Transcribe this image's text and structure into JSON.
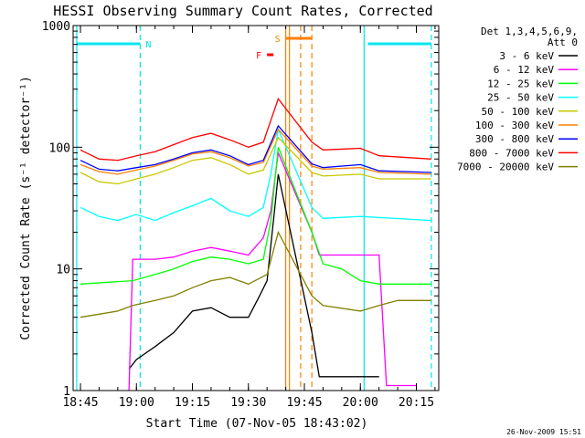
{
  "chart_data": {
    "type": "line",
    "title": "HESSI Observing Summary Count Rates, Corrected",
    "xlabel": "Start Time (07-Nov-05 18:43:02)",
    "ylabel": "Corrected Count Rate (s⁻¹ detector⁻¹)",
    "x_ticks": [
      "18:45",
      "19:00",
      "19:15",
      "19:30",
      "19:45",
      "20:00",
      "20:15"
    ],
    "y_ticks": [
      "1",
      "10",
      "100",
      "1000"
    ],
    "yscale": "log",
    "ylim": [
      1,
      1000
    ],
    "xlim": [
      "18:43:02",
      "20:21:00"
    ],
    "grid": false,
    "legend_position": "top-right",
    "legend_header": [
      "Det 1,3,4,5,6,9,",
      "Att 0"
    ],
    "flags": [
      {
        "label": "N",
        "color": "#00e5ee",
        "spans": [
          [
            "18:44",
            "19:01"
          ],
          [
            "20:02",
            "20:19"
          ]
        ]
      },
      {
        "label": "S",
        "color": "#ff7f00",
        "spans": [
          [
            "19:40",
            "19:47"
          ]
        ]
      },
      {
        "label": "F",
        "color": "#ff0000",
        "spans": [
          [
            "19:35",
            "19:37"
          ]
        ]
      }
    ],
    "vlines": [
      {
        "time": "19:01",
        "color": "#00e5ee",
        "style": "dashed"
      },
      {
        "time": "20:01",
        "color": "#00e5ee",
        "style": "solid"
      },
      {
        "time": "20:19",
        "color": "#00e5ee",
        "style": "dashed"
      },
      {
        "time": "18:44",
        "color": "#00e5ee",
        "style": "solid"
      },
      {
        "time": "19:40",
        "color": "#ff7f00",
        "style": "solid"
      },
      {
        "time": "19:41",
        "color": "#ff7f00",
        "style": "solid"
      },
      {
        "time": "19:44",
        "color": "#ff7f00",
        "style": "dashed"
      },
      {
        "time": "19:47",
        "color": "#ff7f00",
        "style": "dashed"
      }
    ],
    "series": [
      {
        "name": "3 - 6 keV",
        "color": "#000000",
        "x": [
          "18:58",
          "19:00",
          "19:05",
          "19:10",
          "19:15",
          "19:20",
          "19:25",
          "19:30",
          "19:33",
          "19:35",
          "19:37",
          "19:38",
          "19:47",
          "19:49",
          "20:05"
        ],
        "y": [
          1.5,
          1.8,
          2.3,
          3.0,
          4.5,
          4.8,
          4.0,
          4.0,
          6.0,
          8.0,
          30,
          60,
          3.0,
          1.3,
          1.3
        ]
      },
      {
        "name": "6 - 12 keV",
        "color": "#ff00ff",
        "x": [
          "18:58",
          "18:59",
          "19:05",
          "19:10",
          "19:15",
          "19:20",
          "19:25",
          "19:30",
          "19:34",
          "19:36",
          "19:38",
          "19:47",
          "19:49",
          "20:05",
          "20:07",
          "20:15"
        ],
        "y": [
          1.0,
          12,
          12,
          12.5,
          14,
          15,
          14,
          13,
          18,
          30,
          90,
          20,
          13,
          13,
          1.1,
          1.1
        ]
      },
      {
        "name": "12 - 25 keV",
        "color": "#00ff00",
        "x": [
          "18:45",
          "18:59",
          "19:05",
          "19:10",
          "19:15",
          "19:20",
          "19:25",
          "19:30",
          "19:34",
          "19:36",
          "19:38",
          "19:47",
          "19:50",
          "19:55",
          "20:00",
          "20:05",
          "20:07",
          "20:19"
        ],
        "y": [
          7.5,
          8.0,
          9.0,
          10.0,
          11.5,
          12.5,
          12.0,
          11.0,
          12.0,
          25,
          100,
          20,
          11,
          10,
          8,
          7.5,
          7.5,
          7.5
        ]
      },
      {
        "name": "25 - 50 keV",
        "color": "#00ffff",
        "x": [
          "18:45",
          "18:50",
          "18:55",
          "19:00",
          "19:05",
          "19:10",
          "19:15",
          "19:20",
          "19:25",
          "19:30",
          "19:34",
          "19:36",
          "19:38",
          "19:47",
          "19:50",
          "20:00",
          "20:19"
        ],
        "y": [
          32,
          27,
          25,
          28,
          25,
          29,
          33,
          38,
          30,
          27,
          32,
          60,
          140,
          32,
          26,
          27,
          25
        ]
      },
      {
        "name": "50 - 100 keV",
        "color": "#c8c800",
        "x": [
          "18:45",
          "18:50",
          "18:55",
          "19:00",
          "19:05",
          "19:10",
          "19:15",
          "19:20",
          "19:25",
          "19:30",
          "19:34",
          "19:38",
          "19:47",
          "19:50",
          "20:00",
          "20:05",
          "20:19"
        ],
        "y": [
          62,
          52,
          50,
          55,
          60,
          68,
          78,
          82,
          72,
          60,
          65,
          120,
          62,
          58,
          60,
          55,
          55
        ]
      },
      {
        "name": "100 - 300 keV",
        "color": "#ff7f00",
        "x": [
          "18:45",
          "18:50",
          "18:55",
          "19:00",
          "19:05",
          "19:10",
          "19:15",
          "19:20",
          "19:25",
          "19:30",
          "19:34",
          "19:38",
          "19:47",
          "19:50",
          "20:00",
          "20:05",
          "20:19"
        ],
        "y": [
          72,
          63,
          60,
          65,
          70,
          78,
          88,
          92,
          82,
          70,
          75,
          140,
          70,
          66,
          68,
          62,
          60
        ]
      },
      {
        "name": "300 - 800 keV",
        "color": "#0000ff",
        "x": [
          "18:45",
          "18:50",
          "18:55",
          "19:00",
          "19:05",
          "19:10",
          "19:15",
          "19:20",
          "19:25",
          "19:30",
          "19:34",
          "19:38",
          "19:47",
          "19:50",
          "20:00",
          "20:05",
          "20:19"
        ],
        "y": [
          78,
          66,
          64,
          68,
          72,
          80,
          90,
          95,
          85,
          72,
          78,
          150,
          73,
          68,
          72,
          64,
          62
        ]
      },
      {
        "name": "800 - 7000 keV",
        "color": "#ff0000",
        "x": [
          "18:45",
          "18:50",
          "18:55",
          "19:00",
          "19:05",
          "19:10",
          "19:15",
          "19:20",
          "19:25",
          "19:30",
          "19:34",
          "19:38",
          "19:47",
          "19:50",
          "20:00",
          "20:05",
          "20:19"
        ],
        "y": [
          95,
          80,
          78,
          85,
          92,
          105,
          120,
          130,
          115,
          100,
          110,
          250,
          110,
          95,
          98,
          85,
          80
        ]
      },
      {
        "name": "7000 - 20000 keV",
        "color": "#808000",
        "x": [
          "18:45",
          "18:55",
          "18:59",
          "19:05",
          "19:10",
          "19:15",
          "19:20",
          "19:25",
          "19:30",
          "19:35",
          "19:38",
          "19:47",
          "19:50",
          "20:00",
          "20:05",
          "20:10",
          "20:19"
        ],
        "y": [
          4.0,
          4.5,
          5.0,
          5.5,
          6.0,
          7.0,
          8.0,
          8.5,
          7.5,
          9.0,
          20,
          6.0,
          5.0,
          4.5,
          5.0,
          5.5,
          5.5
        ]
      }
    ]
  },
  "timestamp": "26-Nov-2009 15:51"
}
